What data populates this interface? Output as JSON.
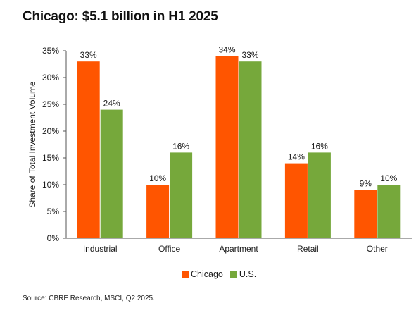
{
  "title": "Chicago: $5.1 billion in H1 2025",
  "source": "Source: CBRE Research, MSCI, Q2 2025.",
  "colors": {
    "chicago": "#ff5500",
    "us": "#76a83b",
    "axis": "#555555"
  },
  "chart_data": {
    "type": "bar",
    "title": "Chicago: $5.1 billion in H1 2025",
    "xlabel": "",
    "ylabel": "Share of Total Investment Volume",
    "ylim": [
      0,
      35
    ],
    "yticks": [
      "0%",
      "5%",
      "10%",
      "15%",
      "20%",
      "25%",
      "30%",
      "35%"
    ],
    "ytick_values": [
      0,
      5,
      10,
      15,
      20,
      25,
      30,
      35
    ],
    "grid": false,
    "legend_position": "bottom",
    "categories": [
      "Industrial",
      "Office",
      "Apartment",
      "Retail",
      "Other"
    ],
    "series": [
      {
        "name": "Chicago",
        "values": [
          33,
          10,
          34,
          14,
          9
        ],
        "labels": [
          "33%",
          "10%",
          "34%",
          "14%",
          "9%"
        ]
      },
      {
        "name": "U.S.",
        "values": [
          24,
          16,
          33,
          16,
          10
        ],
        "labels": [
          "24%",
          "16%",
          "33%",
          "16%",
          "10%"
        ]
      }
    ]
  }
}
